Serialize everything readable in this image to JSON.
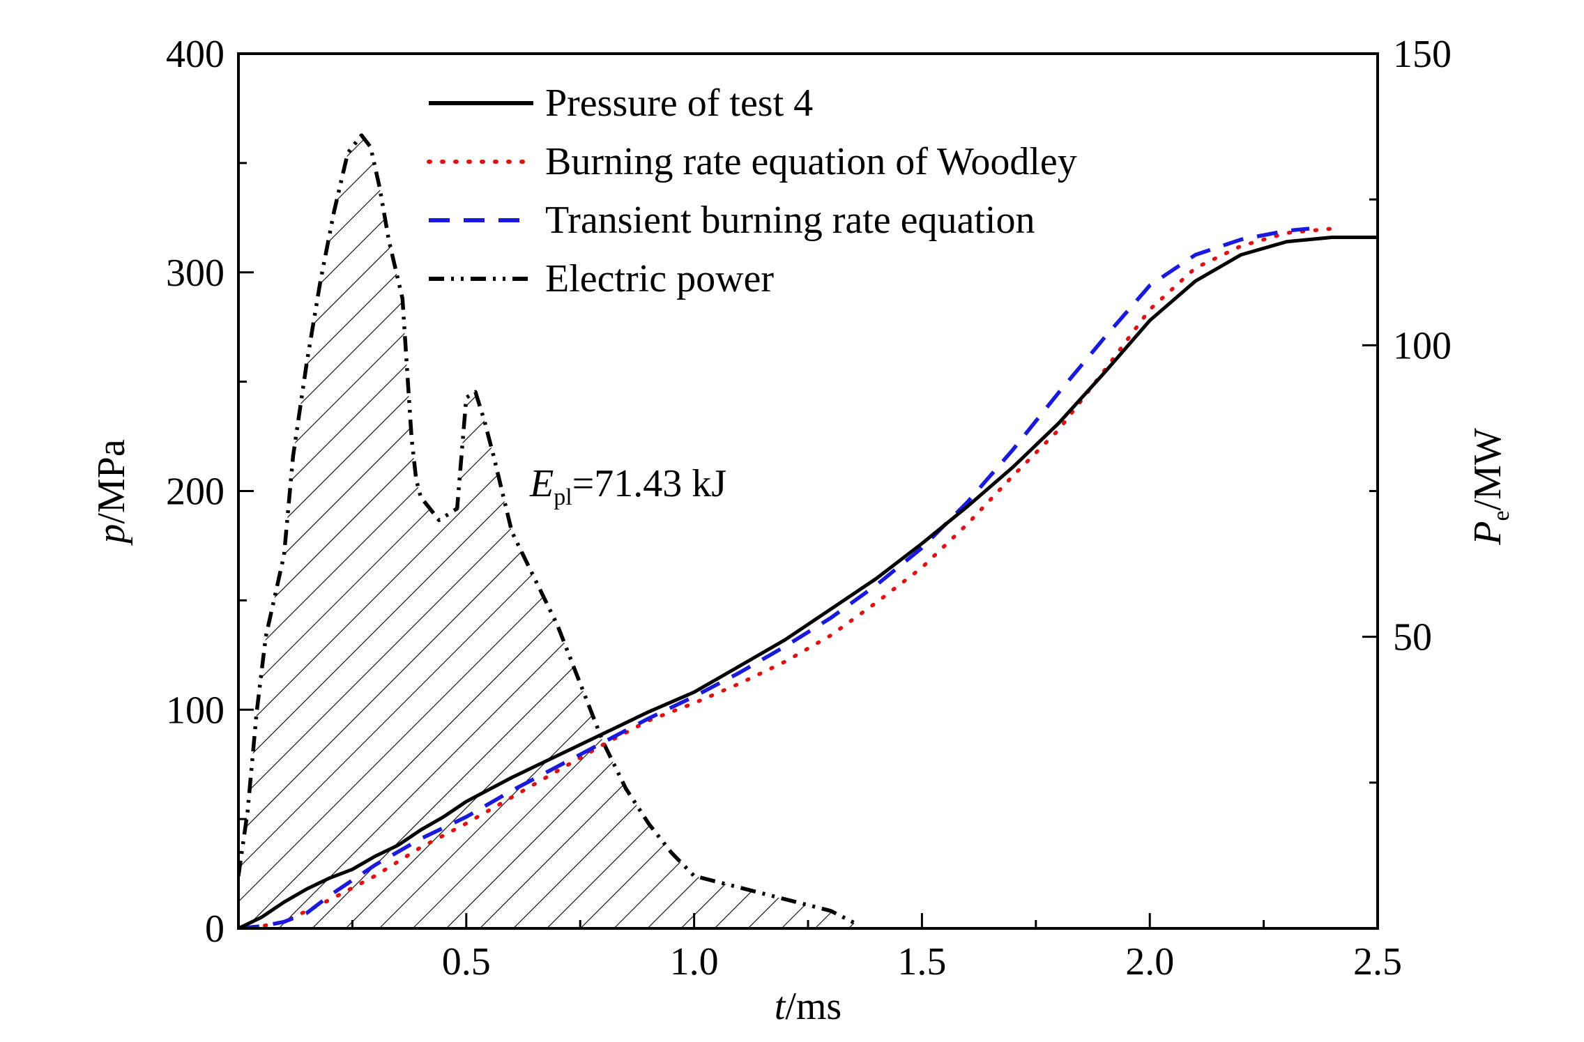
{
  "chart_data": {
    "type": "line",
    "x": {
      "label_var": "t",
      "label_unit": "/ms",
      "lim": [
        0,
        2.5
      ],
      "ticks": [
        0.5,
        1.0,
        1.5,
        2.0,
        2.5
      ],
      "tick_labels": [
        "0.5",
        "1.0",
        "1.5",
        "2.0",
        "2.5"
      ],
      "minor_ticks": [
        0.25,
        0.75,
        1.25,
        1.75,
        2.25
      ]
    },
    "y_left": {
      "label_var": "p",
      "label_unit": "/MPa",
      "lim": [
        0,
        400
      ],
      "ticks": [
        0,
        100,
        200,
        300,
        400
      ],
      "tick_labels": [
        "0",
        "100",
        "200",
        "300",
        "400"
      ],
      "minor_ticks": [
        50,
        150,
        250,
        350
      ]
    },
    "y_right": {
      "label_var": "P",
      "label_sub": "e",
      "label_unit": "/MW",
      "lim": [
        0,
        150
      ],
      "ticks": [
        50,
        100,
        150
      ],
      "tick_labels": [
        "50",
        "100",
        "150"
      ],
      "minor_ticks": [
        25,
        75,
        125
      ]
    },
    "legend": {
      "position": "top-center",
      "entries": [
        "Pressure of test 4",
        "Burning rate equation of Woodley",
        "Transient burning rate equation",
        "Electric power"
      ]
    },
    "annotation": {
      "var": "E",
      "sub": "pl",
      "text": "=71.43 kJ"
    },
    "grid": false,
    "series": [
      {
        "name": "Pressure of test 4",
        "axis": "left",
        "style": "solid",
        "color": "#000000",
        "x": [
          0.0,
          0.05,
          0.1,
          0.15,
          0.2,
          0.25,
          0.3,
          0.35,
          0.4,
          0.45,
          0.5,
          0.6,
          0.7,
          0.8,
          0.9,
          1.0,
          1.1,
          1.2,
          1.3,
          1.4,
          1.5,
          1.6,
          1.7,
          1.8,
          1.9,
          2.0,
          2.1,
          2.2,
          2.3,
          2.4,
          2.5
        ],
        "y": [
          0,
          5,
          12,
          18,
          23,
          27,
          33,
          38,
          45,
          51,
          58,
          69,
          79,
          89,
          99,
          108,
          120,
          132,
          146,
          160,
          176,
          193,
          211,
          231,
          254,
          278,
          296,
          308,
          314,
          316,
          316
        ]
      },
      {
        "name": "Burning rate equation of Woodley",
        "axis": "left",
        "style": "dotted",
        "color": "#e01010",
        "x": [
          0.0,
          0.05,
          0.1,
          0.15,
          0.2,
          0.3,
          0.4,
          0.5,
          0.6,
          0.7,
          0.8,
          0.9,
          1.0,
          1.1,
          1.2,
          1.3,
          1.4,
          1.5,
          1.6,
          1.7,
          1.8,
          1.9,
          2.0,
          2.1,
          2.2,
          2.3,
          2.4
        ],
        "y": [
          0,
          1,
          3,
          8,
          13,
          24,
          37,
          48,
          60,
          72,
          84,
          95,
          103,
          112,
          122,
          134,
          149,
          165,
          185,
          207,
          228,
          255,
          283,
          302,
          312,
          318,
          320
        ]
      },
      {
        "name": "Transient burning rate equation",
        "axis": "left",
        "style": "dashed",
        "color": "#1a1adc",
        "x": [
          0.0,
          0.05,
          0.1,
          0.15,
          0.2,
          0.3,
          0.4,
          0.5,
          0.6,
          0.7,
          0.8,
          0.9,
          1.0,
          1.1,
          1.2,
          1.3,
          1.4,
          1.5,
          1.6,
          1.7,
          1.8,
          1.9,
          2.0,
          2.1,
          2.2,
          2.3,
          2.35
        ],
        "y": [
          0,
          1,
          3,
          7,
          15,
          29,
          41,
          51,
          63,
          74,
          85,
          96,
          106,
          117,
          129,
          142,
          157,
          174,
          195,
          219,
          245,
          270,
          294,
          308,
          315,
          319,
          320
        ]
      },
      {
        "name": "Electric power",
        "axis": "right",
        "style": "dashdot",
        "color": "#000000",
        "fill": "hatched",
        "x": [
          0.0,
          0.02,
          0.04,
          0.06,
          0.08,
          0.1,
          0.12,
          0.15,
          0.18,
          0.21,
          0.24,
          0.27,
          0.29,
          0.31,
          0.33,
          0.36,
          0.37,
          0.38,
          0.39,
          0.4,
          0.42,
          0.44,
          0.46,
          0.48,
          0.5,
          0.52,
          0.54,
          0.56,
          0.6,
          0.65,
          0.7,
          0.75,
          0.8,
          0.85,
          0.9,
          0.95,
          1.0,
          1.05,
          1.1,
          1.15,
          1.2,
          1.25,
          1.3,
          1.35,
          1.36
        ],
        "y": [
          9,
          20,
          37,
          50,
          57,
          64,
          81,
          97,
          111,
          123,
          133,
          136,
          134,
          127,
          118,
          108,
          96,
          84,
          77,
          74,
          72,
          70,
          71,
          72,
          91,
          92,
          87,
          81,
          68,
          60,
          52,
          42,
          32,
          24,
          18,
          13,
          9,
          8,
          7,
          6,
          5,
          4,
          3,
          1,
          0
        ]
      }
    ]
  }
}
